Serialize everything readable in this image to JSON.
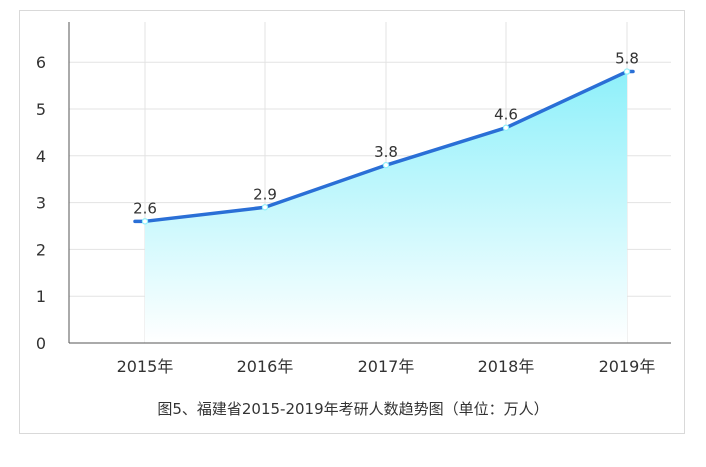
{
  "chart_data": {
    "type": "area",
    "categories": [
      "2015年",
      "2016年",
      "2017年",
      "2018年",
      "2019年"
    ],
    "series": [
      {
        "values": [
          2.6,
          2.9,
          3.8,
          4.6,
          5.8
        ]
      }
    ],
    "data_labels": [
      "2.6",
      "2.9",
      "3.8",
      "4.6",
      "5.8"
    ],
    "y_ticks": [
      "0",
      "1",
      "2",
      "3",
      "4",
      "5",
      "6"
    ],
    "ylim": [
      0,
      6.6
    ],
    "grid": true,
    "caption": "图5、福建省2015-2019年考研人数趋势图（单位：万人）",
    "colors": {
      "line": "#2a6fd6",
      "fill_top": "#8ef0fa",
      "fill_bottom": "#ffffff",
      "grid": "#e3e3e3",
      "axis": "#555555"
    }
  }
}
